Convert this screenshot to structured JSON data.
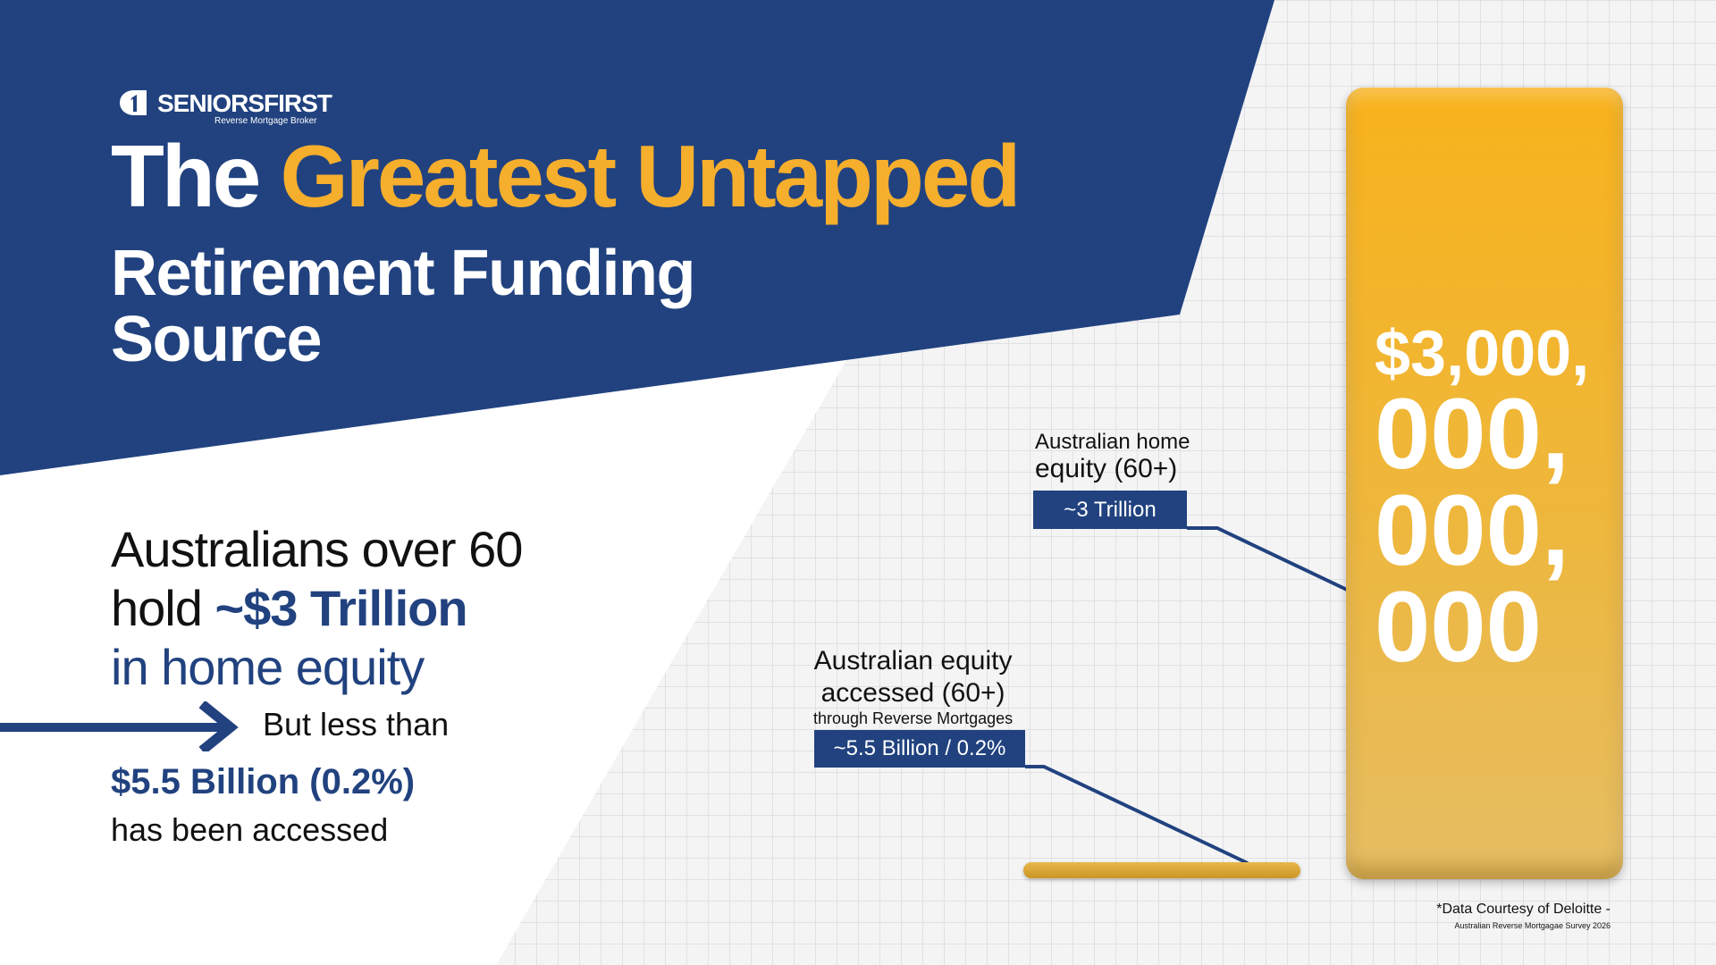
{
  "brand": {
    "name": "SENIORSFIRST",
    "tagline": "Reverse Mortgage Broker"
  },
  "headline": {
    "word1": "The",
    "highlight": "Greatest Untapped",
    "line2": "Retirement Funding",
    "line3": "Source"
  },
  "stat": {
    "line1": "Australians over 60",
    "line2_prefix": "hold",
    "line2_value": "~$3 Trillion",
    "line3": "in home equity"
  },
  "comparison": {
    "but_text": "But less than",
    "amount": "$5.5 Billion (0.2%)",
    "suffix": "has been accessed"
  },
  "bars": {
    "home_label_line1": "Australian home",
    "home_label_line2": "equity (60+)",
    "home_value": "~3 Trillion",
    "home_amount_lines": [
      "$3,000,",
      "000,",
      "000,",
      "000"
    ],
    "accessed_label_line1": "Australian equity",
    "accessed_label_line2": "accessed (60+)",
    "accessed_label_line3": "through Reverse Mortgages",
    "accessed_value": "~5.5 Billion / 0.2%"
  },
  "source": {
    "line1": "*Data Courtesy of Deloitte -",
    "line2": "Australian Reverse Mortgagae Survey 2026"
  },
  "colors": {
    "navy": "#21427f",
    "gold": "#f6ae2d",
    "bar_gold": "#f8b21c"
  }
}
